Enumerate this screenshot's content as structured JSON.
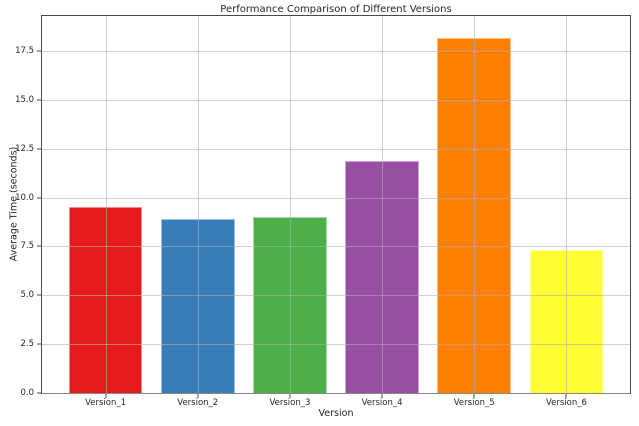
{
  "chart_data": {
    "type": "bar",
    "title": "Performance Comparison of Different Versions",
    "xlabel": "Version",
    "ylabel": "Average Time (seconds)",
    "categories": [
      "Version_1",
      "Version_2",
      "Version_3",
      "Version_4",
      "Version_5",
      "Version_6"
    ],
    "values": [
      9.5,
      8.9,
      9.0,
      11.9,
      18.15,
      7.3
    ],
    "bar_colors": [
      "#e41a1c",
      "#377eb8",
      "#4daf4a",
      "#984ea3",
      "#ff7f00",
      "#ffff33"
    ],
    "bar_width": 0.8,
    "xlim": [
      -0.69,
      5.69
    ],
    "ylim": [
      0,
      19.3
    ],
    "ytick_values": [
      0,
      2.5,
      5,
      7.5,
      10,
      12.5,
      15,
      17.5
    ],
    "ytick_labels": [
      "0.0",
      "2.5",
      "5.0",
      "7.5",
      "10.0",
      "12.5",
      "15.0",
      "17.5"
    ],
    "grid": true,
    "grid_color": "#b0b0b0",
    "spine_color": "#4a4a4a",
    "text_color": "#262626"
  }
}
